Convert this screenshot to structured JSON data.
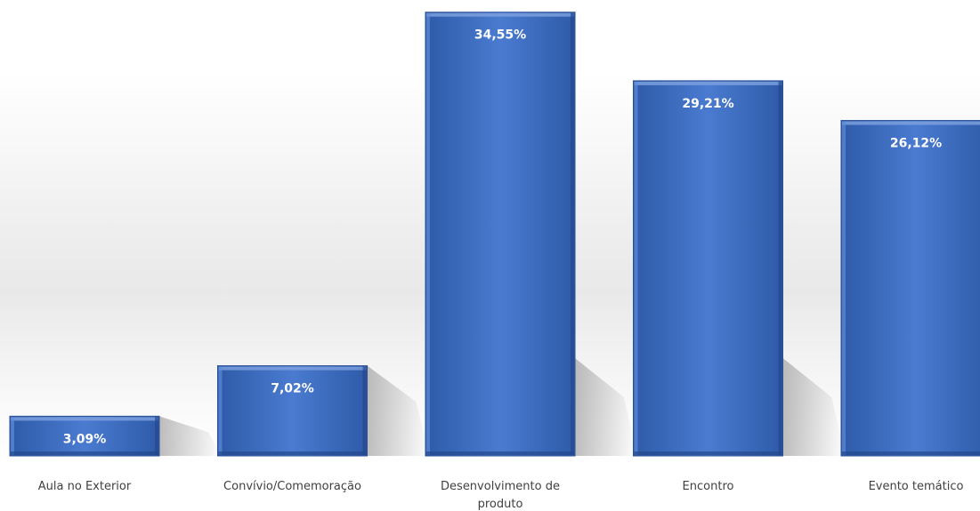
{
  "chart_data": {
    "type": "bar",
    "title": "",
    "xlabel": "",
    "ylabel": "",
    "categories": [
      "Aula no Exterior",
      "Convívio/Comemoração",
      "Desenvolvimento de produto",
      "Encontro",
      "Evento temático"
    ],
    "category_lines": [
      [
        "Aula no Exterior"
      ],
      [
        "Convívio/Comemoração"
      ],
      [
        "Desenvolvimento de",
        "produto"
      ],
      [
        "Encontro"
      ],
      [
        "Evento temático"
      ]
    ],
    "values": [
      3.09,
      7.02,
      34.55,
      29.21,
      26.12
    ],
    "data_labels": [
      "3,09%",
      "7,02%",
      "34,55%",
      "29,21%",
      "26,12%"
    ],
    "ylim": [
      0,
      35.5
    ],
    "grid": false,
    "legend": "none",
    "bar_color": "#4472c4",
    "style": "3d-bevel"
  }
}
